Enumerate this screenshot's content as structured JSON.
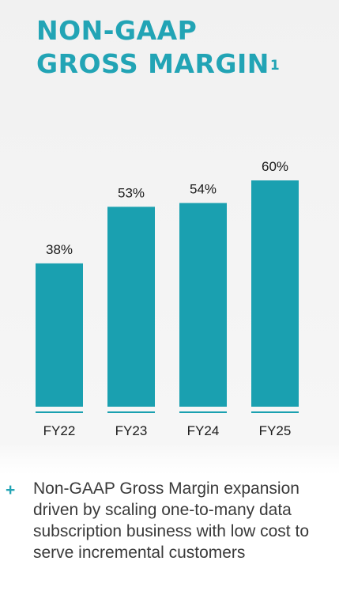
{
  "title": {
    "line1": "NON-GAAP",
    "line2": "GROSS MARGIN",
    "footnote": "1"
  },
  "chart_data": {
    "type": "bar",
    "categories": [
      "FY22",
      "FY23",
      "FY24",
      "FY25"
    ],
    "values": [
      38,
      53,
      54,
      60
    ],
    "value_labels": [
      "38%",
      "53%",
      "54%",
      "60%"
    ],
    "title": "NON-GAAP GROSS MARGIN",
    "xlabel": "",
    "ylabel": "",
    "ylim": [
      0,
      60
    ],
    "grid": false,
    "color": "#1aa0b0"
  },
  "bullet": {
    "marker": "+",
    "text": "Non-GAAP Gross Margin expansion driven by scaling one-to-many data subscription business with low cost to serve incremental customers"
  },
  "colors": {
    "accent": "#22a4b5",
    "bar": "#1aa0b0",
    "text": "#3a3a3a"
  }
}
